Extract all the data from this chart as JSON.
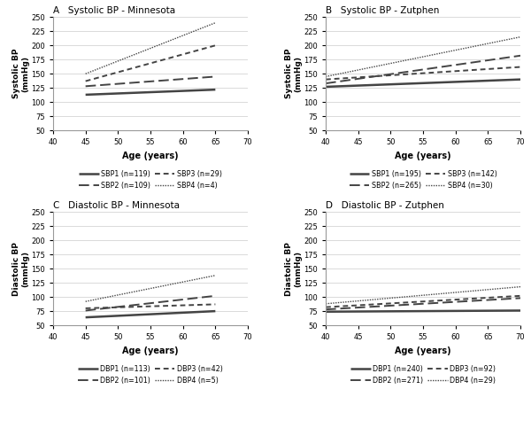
{
  "panels": [
    {
      "label": "A",
      "title": "Systolic BP - Minnesota",
      "ylabel": "Systolic BP\n(mmHg)",
      "xlim": [
        40,
        70
      ],
      "ylim": [
        50,
        250
      ],
      "xticks": [
        40,
        45,
        50,
        55,
        60,
        65,
        70
      ],
      "yticks": [
        50,
        75,
        100,
        125,
        150,
        175,
        200,
        225,
        250
      ],
      "xdata": [
        45,
        65
      ],
      "series": [
        {
          "name": "SBP1 (n=119)",
          "y": [
            113,
            122
          ],
          "ls": "solid",
          "lw": 1.8
        },
        {
          "name": "SBP2 (n=109)",
          "y": [
            128,
            145
          ],
          "ls": "ldash",
          "lw": 1.4
        },
        {
          "name": "SBP3 (n=29)",
          "y": [
            137,
            200
          ],
          "ls": "sdash",
          "lw": 1.4
        },
        {
          "name": "SBP4 (n=4)",
          "y": [
            150,
            240
          ],
          "ls": "dotted",
          "lw": 1.0
        }
      ]
    },
    {
      "label": "B",
      "title": "Systolic BP - Zutphen",
      "ylabel": "Systolic BP\n(mmHg)",
      "xlim": [
        40,
        70
      ],
      "ylim": [
        50,
        250
      ],
      "xticks": [
        40,
        45,
        50,
        55,
        60,
        65,
        70
      ],
      "yticks": [
        50,
        75,
        100,
        125,
        150,
        175,
        200,
        225,
        250
      ],
      "xdata": [
        40,
        70
      ],
      "series": [
        {
          "name": "SBP1 (n=195)",
          "y": [
            127,
            140
          ],
          "ls": "solid",
          "lw": 1.8
        },
        {
          "name": "SBP2 (n=265)",
          "y": [
            133,
            182
          ],
          "ls": "ldash",
          "lw": 1.4
        },
        {
          "name": "SBP3 (n=142)",
          "y": [
            140,
            162
          ],
          "ls": "sdash",
          "lw": 1.4
        },
        {
          "name": "SBP4 (n=30)",
          "y": [
            145,
            215
          ],
          "ls": "dotted",
          "lw": 1.0
        }
      ]
    },
    {
      "label": "C",
      "title": "Diastolic BP - Minnesota",
      "ylabel": "Diastolic BP\n(mmHg)",
      "xlim": [
        40,
        70
      ],
      "ylim": [
        50,
        250
      ],
      "xticks": [
        40,
        45,
        50,
        55,
        60,
        65,
        70
      ],
      "yticks": [
        50,
        75,
        100,
        125,
        150,
        175,
        200,
        225,
        250
      ],
      "xdata": [
        45,
        65
      ],
      "series": [
        {
          "name": "DBP1 (n=113)",
          "y": [
            64,
            75
          ],
          "ls": "solid",
          "lw": 1.8
        },
        {
          "name": "DBP2 (n=101)",
          "y": [
            76,
            102
          ],
          "ls": "ldash",
          "lw": 1.4
        },
        {
          "name": "DBP3 (n=42)",
          "y": [
            80,
            87
          ],
          "ls": "sdash",
          "lw": 1.4
        },
        {
          "name": "DBP4 (n=5)",
          "y": [
            92,
            138
          ],
          "ls": "dotted",
          "lw": 1.0
        }
      ]
    },
    {
      "label": "D",
      "title": "Diastolic BP - Zutphen",
      "ylabel": "Diastolic BP\n(mmHg)",
      "xlim": [
        40,
        70
      ],
      "ylim": [
        50,
        250
      ],
      "xticks": [
        40,
        45,
        50,
        55,
        60,
        65,
        70
      ],
      "yticks": [
        50,
        75,
        100,
        125,
        150,
        175,
        200,
        225,
        250
      ],
      "xdata": [
        40,
        70
      ],
      "series": [
        {
          "name": "DBP1 (n=240)",
          "y": [
            74,
            76
          ],
          "ls": "solid",
          "lw": 1.8
        },
        {
          "name": "DBP2 (n=271)",
          "y": [
            78,
            98
          ],
          "ls": "ldash",
          "lw": 1.4
        },
        {
          "name": "DBP3 (n=92)",
          "y": [
            82,
            102
          ],
          "ls": "sdash",
          "lw": 1.4
        },
        {
          "name": "DBP4 (n=29)",
          "y": [
            88,
            118
          ],
          "ls": "dotted",
          "lw": 1.0
        }
      ]
    }
  ],
  "line_color": "#444444",
  "bg_color": "#ffffff",
  "grid_color": "#cccccc"
}
